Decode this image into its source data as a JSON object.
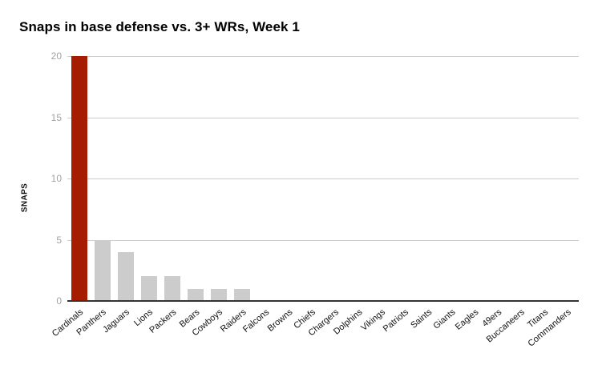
{
  "title": "Snaps in base defense vs. 3+ WRs, Week 1",
  "y_axis_label": "SNAPS",
  "colors": {
    "highlight_bar": "#a61c00",
    "default_bar": "#cccccc",
    "gridline": "#cccccc",
    "axis_line": "#333333",
    "tick_label": "#a3a3a3",
    "text": "#111111"
  },
  "chart_data": {
    "type": "bar",
    "title": "Snaps in base defense vs. 3+ WRs, Week 1",
    "xlabel": "",
    "ylabel": "SNAPS",
    "categories": [
      "Cardinals",
      "Panthers",
      "Jaguars",
      "Lions",
      "Packers",
      "Bears",
      "Cowboys",
      "Raiders",
      "Falcons",
      "Browns",
      "Chiefs",
      "Chargers",
      "Dolphins",
      "Vikings",
      "Patriots",
      "Saints",
      "Giants",
      "Eagles",
      "49ers",
      "Buccaneers",
      "Titans",
      "Commanders"
    ],
    "values": [
      20,
      5,
      4,
      2,
      2,
      1,
      1,
      1,
      0,
      0,
      0,
      0,
      0,
      0,
      0,
      0,
      0,
      0,
      0,
      0,
      0,
      0
    ],
    "highlight_index": 0,
    "ylim": [
      0,
      20
    ],
    "yticks": [
      0,
      5,
      10,
      15,
      20
    ],
    "grid": true,
    "legend": "none",
    "x_label_rotation_deg": -40
  }
}
